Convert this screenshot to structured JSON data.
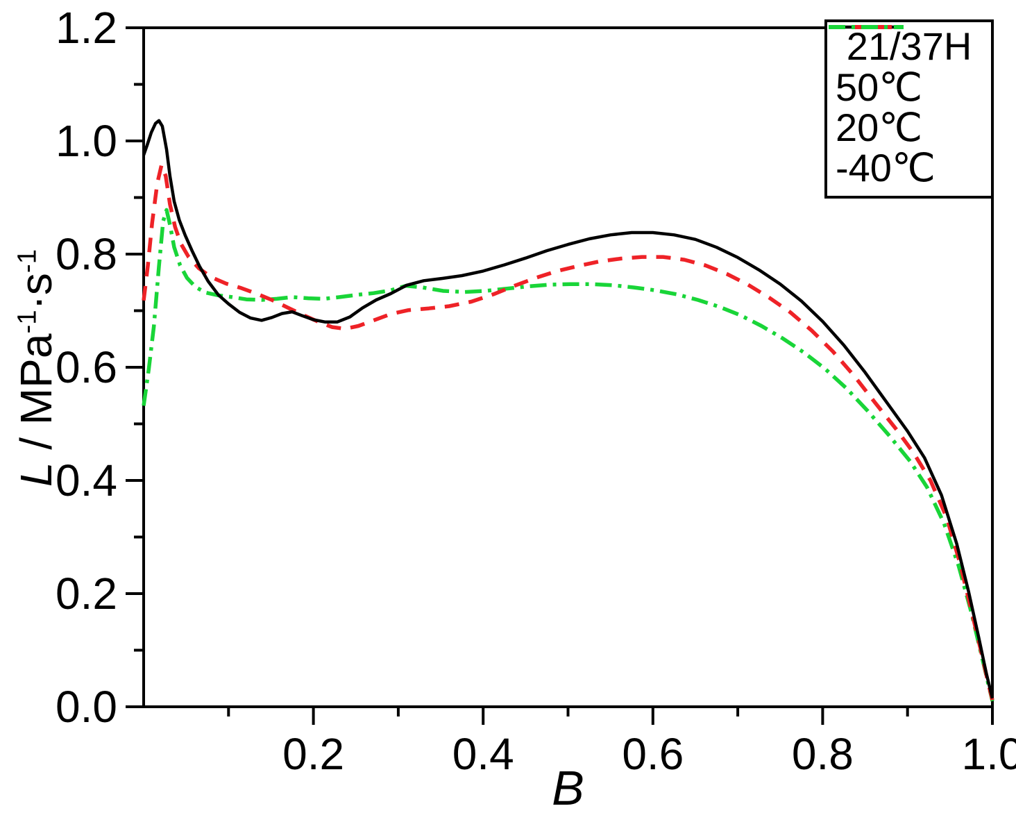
{
  "figure": {
    "background": "#ffffff"
  },
  "chart_data": {
    "type": "line",
    "title": "",
    "xlabel": "B",
    "ylabel": {
      "variable": "L",
      "unit_prefix": " / MPa",
      "sup1": "-1",
      "unit_mid": "·s",
      "sup2": "-1"
    },
    "xlim": [
      0,
      1.0
    ],
    "ylim": [
      0,
      1.2
    ],
    "grid": false,
    "x_major_ticks": [
      {
        "v": 0.2,
        "label": "0.2"
      },
      {
        "v": 0.4,
        "label": "0.4"
      },
      {
        "v": 0.6,
        "label": "0.6"
      },
      {
        "v": 0.8,
        "label": "0.8"
      },
      {
        "v": 1.0,
        "label": "1.0"
      }
    ],
    "x_minor_ticks": [
      0.1,
      0.3,
      0.5,
      0.7,
      0.9
    ],
    "y_major_ticks": [
      {
        "v": 0.0,
        "label": "0.0"
      },
      {
        "v": 0.2,
        "label": "0.2"
      },
      {
        "v": 0.4,
        "label": "0.4"
      },
      {
        "v": 0.6,
        "label": "0.6"
      },
      {
        "v": 0.8,
        "label": "0.8"
      },
      {
        "v": 1.0,
        "label": "1.0"
      },
      {
        "v": 1.2,
        "label": "1.2"
      }
    ],
    "y_minor_ticks": [
      0.1,
      0.3,
      0.5,
      0.7,
      0.9,
      1.1
    ],
    "legend": {
      "position": "top-right",
      "title": "21/37H",
      "entries": [
        {
          "label": "50℃",
          "color": "#000000",
          "style": "solid"
        },
        {
          "label": "20℃",
          "color": "#ee2227",
          "style": "dashed"
        },
        {
          "label": "-40℃",
          "color": "#19d538",
          "style": "dashdot"
        }
      ]
    },
    "series": [
      {
        "name": "-40℃",
        "color": "#19d538",
        "style": "dashdot",
        "width": 5.5,
        "points": [
          [
            0.0,
            0.532
          ],
          [
            0.006,
            0.596
          ],
          [
            0.012,
            0.672
          ],
          [
            0.018,
            0.778
          ],
          [
            0.023,
            0.858
          ],
          [
            0.027,
            0.878
          ],
          [
            0.031,
            0.852
          ],
          [
            0.036,
            0.812
          ],
          [
            0.043,
            0.78
          ],
          [
            0.051,
            0.758
          ],
          [
            0.061,
            0.742
          ],
          [
            0.073,
            0.732
          ],
          [
            0.088,
            0.727
          ],
          [
            0.104,
            0.724
          ],
          [
            0.121,
            0.72
          ],
          [
            0.139,
            0.719
          ],
          [
            0.157,
            0.721
          ],
          [
            0.175,
            0.724
          ],
          [
            0.194,
            0.722
          ],
          [
            0.212,
            0.721
          ],
          [
            0.231,
            0.724
          ],
          [
            0.251,
            0.728
          ],
          [
            0.271,
            0.731
          ],
          [
            0.291,
            0.736
          ],
          [
            0.309,
            0.744
          ],
          [
            0.329,
            0.741
          ],
          [
            0.353,
            0.735
          ],
          [
            0.378,
            0.733
          ],
          [
            0.403,
            0.735
          ],
          [
            0.428,
            0.739
          ],
          [
            0.453,
            0.743
          ],
          [
            0.478,
            0.746
          ],
          [
            0.503,
            0.747
          ],
          [
            0.528,
            0.747
          ],
          [
            0.553,
            0.745
          ],
          [
            0.578,
            0.741
          ],
          [
            0.603,
            0.736
          ],
          [
            0.628,
            0.729
          ],
          [
            0.653,
            0.719
          ],
          [
            0.678,
            0.707
          ],
          [
            0.703,
            0.692
          ],
          [
            0.728,
            0.673
          ],
          [
            0.753,
            0.651
          ],
          [
            0.778,
            0.626
          ],
          [
            0.803,
            0.597
          ],
          [
            0.828,
            0.563
          ],
          [
            0.853,
            0.523
          ],
          [
            0.878,
            0.48
          ],
          [
            0.903,
            0.434
          ],
          [
            0.923,
            0.388
          ],
          [
            0.943,
            0.324
          ],
          [
            0.96,
            0.25
          ],
          [
            0.975,
            0.168
          ],
          [
            0.987,
            0.092
          ],
          [
            0.996,
            0.035
          ],
          [
            1.0,
            0.01
          ]
        ]
      },
      {
        "name": "20℃",
        "color": "#ee2227",
        "style": "dashed",
        "width": 5.5,
        "points": [
          [
            0.0,
            0.718
          ],
          [
            0.005,
            0.78
          ],
          [
            0.01,
            0.855
          ],
          [
            0.016,
            0.925
          ],
          [
            0.021,
            0.957
          ],
          [
            0.026,
            0.938
          ],
          [
            0.031,
            0.888
          ],
          [
            0.037,
            0.848
          ],
          [
            0.044,
            0.818
          ],
          [
            0.053,
            0.795
          ],
          [
            0.065,
            0.775
          ],
          [
            0.08,
            0.759
          ],
          [
            0.097,
            0.748
          ],
          [
            0.115,
            0.74
          ],
          [
            0.133,
            0.73
          ],
          [
            0.151,
            0.719
          ],
          [
            0.169,
            0.706
          ],
          [
            0.187,
            0.693
          ],
          [
            0.205,
            0.681
          ],
          [
            0.222,
            0.671
          ],
          [
            0.237,
            0.668
          ],
          [
            0.253,
            0.673
          ],
          [
            0.271,
            0.683
          ],
          [
            0.291,
            0.694
          ],
          [
            0.312,
            0.701
          ],
          [
            0.336,
            0.704
          ],
          [
            0.36,
            0.708
          ],
          [
            0.386,
            0.716
          ],
          [
            0.412,
            0.729
          ],
          [
            0.437,
            0.744
          ],
          [
            0.462,
            0.758
          ],
          [
            0.487,
            0.77
          ],
          [
            0.512,
            0.779
          ],
          [
            0.537,
            0.787
          ],
          [
            0.562,
            0.792
          ],
          [
            0.587,
            0.795
          ],
          [
            0.612,
            0.795
          ],
          [
            0.637,
            0.79
          ],
          [
            0.662,
            0.78
          ],
          [
            0.687,
            0.765
          ],
          [
            0.712,
            0.746
          ],
          [
            0.737,
            0.723
          ],
          [
            0.762,
            0.697
          ],
          [
            0.787,
            0.665
          ],
          [
            0.812,
            0.628
          ],
          [
            0.837,
            0.585
          ],
          [
            0.862,
            0.537
          ],
          [
            0.887,
            0.49
          ],
          [
            0.907,
            0.449
          ],
          [
            0.927,
            0.4
          ],
          [
            0.946,
            0.335
          ],
          [
            0.961,
            0.258
          ],
          [
            0.974,
            0.178
          ],
          [
            0.986,
            0.102
          ],
          [
            0.995,
            0.042
          ],
          [
            1.0,
            0.012
          ]
        ]
      },
      {
        "name": "50℃",
        "color": "#000000",
        "style": "solid",
        "width": 4.5,
        "points": [
          [
            0.0,
            0.975
          ],
          [
            0.004,
            0.992
          ],
          [
            0.009,
            1.015
          ],
          [
            0.014,
            1.031
          ],
          [
            0.018,
            1.036
          ],
          [
            0.022,
            1.026
          ],
          [
            0.027,
            0.985
          ],
          [
            0.031,
            0.938
          ],
          [
            0.036,
            0.893
          ],
          [
            0.042,
            0.86
          ],
          [
            0.049,
            0.833
          ],
          [
            0.057,
            0.806
          ],
          [
            0.066,
            0.778
          ],
          [
            0.076,
            0.752
          ],
          [
            0.088,
            0.728
          ],
          [
            0.1,
            0.712
          ],
          [
            0.113,
            0.697
          ],
          [
            0.126,
            0.687
          ],
          [
            0.139,
            0.683
          ],
          [
            0.151,
            0.688
          ],
          [
            0.163,
            0.695
          ],
          [
            0.175,
            0.698
          ],
          [
            0.187,
            0.691
          ],
          [
            0.2,
            0.684
          ],
          [
            0.214,
            0.68
          ],
          [
            0.228,
            0.68
          ],
          [
            0.243,
            0.689
          ],
          [
            0.258,
            0.705
          ],
          [
            0.274,
            0.719
          ],
          [
            0.291,
            0.73
          ],
          [
            0.31,
            0.745
          ],
          [
            0.33,
            0.753
          ],
          [
            0.352,
            0.757
          ],
          [
            0.375,
            0.762
          ],
          [
            0.4,
            0.77
          ],
          [
            0.425,
            0.781
          ],
          [
            0.45,
            0.793
          ],
          [
            0.475,
            0.806
          ],
          [
            0.5,
            0.817
          ],
          [
            0.525,
            0.827
          ],
          [
            0.55,
            0.834
          ],
          [
            0.575,
            0.838
          ],
          [
            0.6,
            0.838
          ],
          [
            0.625,
            0.834
          ],
          [
            0.65,
            0.826
          ],
          [
            0.675,
            0.812
          ],
          [
            0.7,
            0.794
          ],
          [
            0.725,
            0.772
          ],
          [
            0.75,
            0.747
          ],
          [
            0.775,
            0.717
          ],
          [
            0.8,
            0.681
          ],
          [
            0.825,
            0.639
          ],
          [
            0.85,
            0.591
          ],
          [
            0.875,
            0.539
          ],
          [
            0.9,
            0.487
          ],
          [
            0.92,
            0.44
          ],
          [
            0.94,
            0.374
          ],
          [
            0.958,
            0.288
          ],
          [
            0.972,
            0.203
          ],
          [
            0.984,
            0.122
          ],
          [
            0.993,
            0.058
          ],
          [
            1.0,
            0.015
          ]
        ]
      }
    ]
  }
}
